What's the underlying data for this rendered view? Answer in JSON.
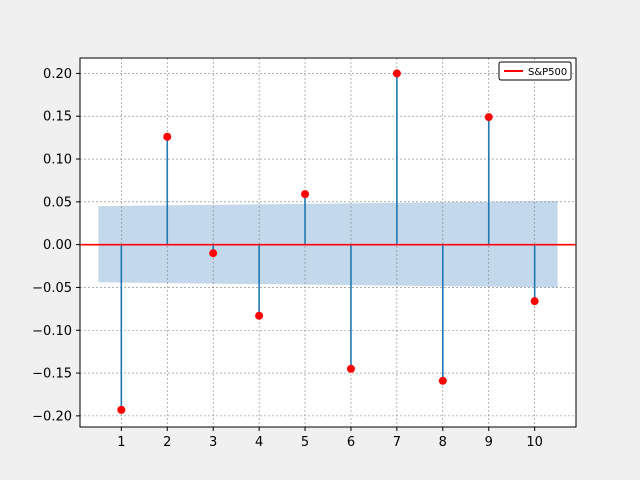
{
  "chart_data": {
    "type": "stem",
    "x": [
      1,
      2,
      3,
      4,
      5,
      6,
      7,
      8,
      9,
      10
    ],
    "values": [
      -0.193,
      0.126,
      -0.01,
      -0.083,
      0.059,
      -0.145,
      0.2,
      -0.159,
      0.149,
      -0.066
    ],
    "xlim": [
      0.1,
      10.9
    ],
    "ylim": [
      -0.213,
      0.218
    ],
    "xticks": [
      "1",
      "2",
      "3",
      "4",
      "5",
      "6",
      "7",
      "8",
      "9",
      "10"
    ],
    "yticks": [
      "−0.20",
      "−0.15",
      "−0.10",
      "−0.05",
      "0.00",
      "0.05",
      "0.10",
      "0.15",
      "0.20"
    ],
    "ytick_values": [
      -0.2,
      -0.15,
      -0.1,
      -0.05,
      0.0,
      0.05,
      0.1,
      0.15,
      0.2
    ],
    "confidence_band": {
      "x_range": [
        0.5,
        10.5
      ],
      "upper": [
        0.045,
        0.051
      ],
      "lower": [
        -0.044,
        -0.05
      ]
    },
    "baseline": 0,
    "grid": true,
    "legend": {
      "entries": [
        "S&P500"
      ],
      "placement": "top-right"
    },
    "colors": {
      "stem": "#1f77b4",
      "marker": "#ff0000",
      "baseline": "#ff0000",
      "band": "#a9c8e2",
      "grid": "#808080",
      "background": "#f0f0f0",
      "plot_area": "#ffffff"
    }
  }
}
